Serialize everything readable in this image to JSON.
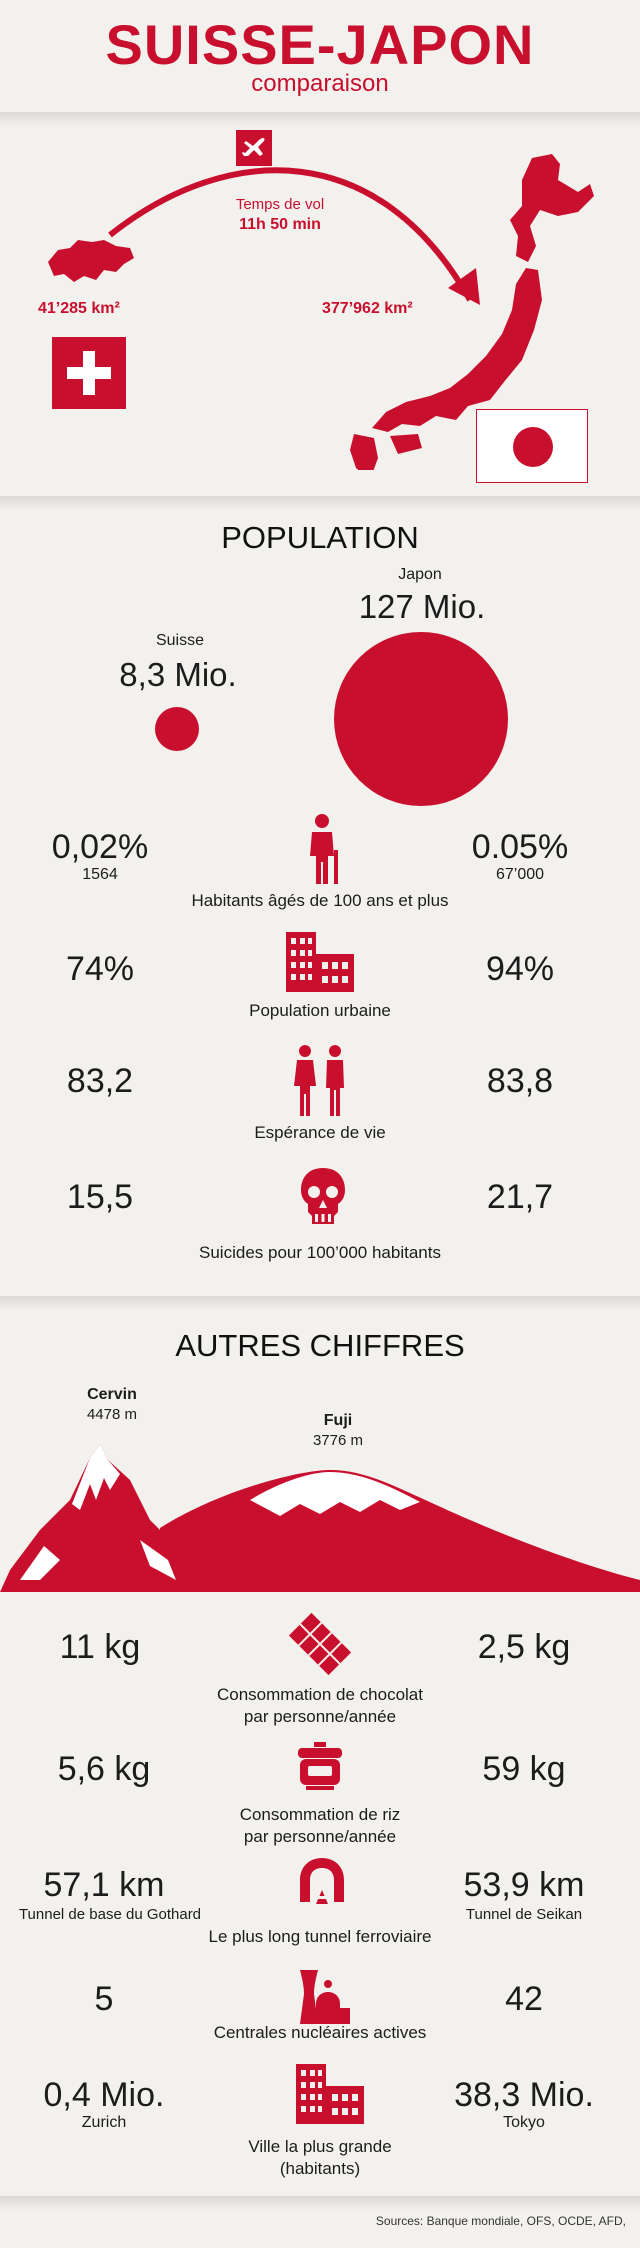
{
  "header": {
    "title": "SUISSE-JAPON",
    "subtitle": "comparaison"
  },
  "flight": {
    "label": "Temps de vol",
    "duration": "11h 50 min"
  },
  "areas": {
    "suisse": "41’285 km²",
    "japon": "377’962 km²"
  },
  "population": {
    "heading": "POPULATION",
    "suisse": {
      "name": "Suisse",
      "value": "8,3 Mio."
    },
    "japon": {
      "name": "Japon",
      "value": "127 Mio."
    },
    "rows": [
      {
        "icon": "elderly-person-icon",
        "left": "0,02%",
        "left_sub": "1564",
        "right": "0.05%",
        "right_sub": "67’000",
        "caption": "Habitants âgés de 100 ans et plus"
      },
      {
        "icon": "city-buildings-icon",
        "left": "74%",
        "right": "94%",
        "caption": "Population urbaine"
      },
      {
        "icon": "couple-icon",
        "left": "83,2",
        "right": "83,8",
        "caption": "Espérance de vie"
      },
      {
        "icon": "skull-icon",
        "left": "15,5",
        "right": "21,7",
        "caption": "Suicides pour 100’000 habitants"
      }
    ]
  },
  "others": {
    "heading": "AUTRES CHIFFRES",
    "cervin": {
      "name": "Cervin",
      "height": "4478 m"
    },
    "fuji": {
      "name": "Fuji",
      "height": "3776 m"
    },
    "rows": [
      {
        "icon": "chocolate-bar-icon",
        "left": "11 kg",
        "right": "2,5 kg",
        "caption1": "Consommation de chocolat",
        "caption2": "par personne/année"
      },
      {
        "icon": "rice-cooker-icon",
        "left": "5,6 kg",
        "right": "59 kg",
        "caption1": "Consommation de riz",
        "caption2": "par personne/année"
      },
      {
        "icon": "tunnel-icon",
        "left": "57,1 km",
        "left_sub": "Tunnel de base du Gothard",
        "right": "53,9 km",
        "right_sub": "Tunnel de Seikan",
        "caption1": "Le plus long tunnel ferroviaire"
      },
      {
        "icon": "nuclear-plant-icon",
        "left": "5",
        "right": "42",
        "caption1": "Centrales nucléaires actives"
      },
      {
        "icon": "city-buildings-icon",
        "left": "0,4 Mio.",
        "left_sub": "Zurich",
        "right": "38,3 Mio.",
        "right_sub": "Tokyo",
        "caption1": "Ville la plus grande",
        "caption2": "(habitants)"
      }
    ]
  },
  "sources": "Sources: Banque mondiale, OFS, OCDE, AFD,"
}
